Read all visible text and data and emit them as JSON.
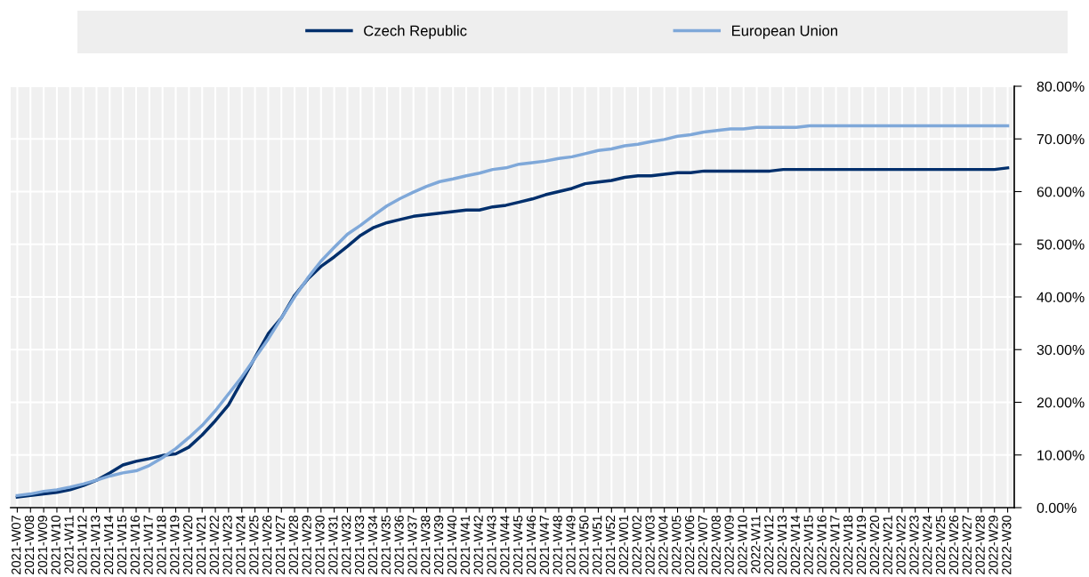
{
  "chart_data": {
    "type": "line",
    "categories": [
      "2021-W07",
      "2021-W08",
      "2021-W09",
      "2021-W10",
      "2021-W11",
      "2021-W12",
      "2021-W13",
      "2021-W14",
      "2021-W15",
      "2021-W16",
      "2021-W17",
      "2021-W18",
      "2021-W19",
      "2021-W20",
      "2021-W21",
      "2021-W22",
      "2021-W23",
      "2021-W24",
      "2021-W25",
      "2021-W26",
      "2021-W27",
      "2021-W28",
      "2021-W29",
      "2021-W30",
      "2021-W31",
      "2021-W32",
      "2021-W33",
      "2021-W34",
      "2021-W35",
      "2021-W36",
      "2021-W37",
      "2021-W38",
      "2021-W39",
      "2021-W40",
      "2021-W41",
      "2021-W42",
      "2021-W43",
      "2021-W44",
      "2021-W45",
      "2021-W46",
      "2021-W47",
      "2021-W48",
      "2021-W49",
      "2021-W50",
      "2021-W51",
      "2021-W52",
      "2022-W01",
      "2022-W02",
      "2022-W03",
      "2022-W04",
      "2022-W05",
      "2022-W06",
      "2022-W07",
      "2022-W08",
      "2022-W09",
      "2022-W10",
      "2022-W11",
      "2022-W12",
      "2022-W13",
      "2022-W14",
      "2022-W15",
      "2022-W16",
      "2022-W17",
      "2022-W18",
      "2022-W19",
      "2022-W20",
      "2022-W21",
      "2022-W22",
      "2022-W23",
      "2022-W24",
      "2022-W25",
      "2022-W26",
      "2022-W27",
      "2022-W28",
      "2022-W29",
      "2022-W30"
    ],
    "series": [
      {
        "name": "Czech Republic",
        "color": "#002f6c",
        "values": [
          2.0,
          2.3,
          2.6,
          2.9,
          3.4,
          4.2,
          5.2,
          6.6,
          8.1,
          8.8,
          9.3,
          9.9,
          10.2,
          11.5,
          13.8,
          16.5,
          19.5,
          24.0,
          28.5,
          33.0,
          36.0,
          40.3,
          43.4,
          45.8,
          47.6,
          49.6,
          51.7,
          53.2,
          54.1,
          54.7,
          55.3,
          55.6,
          55.9,
          56.2,
          56.5,
          56.5,
          57.1,
          57.4,
          58.0,
          58.6,
          59.4,
          60.0,
          60.6,
          61.5,
          61.8,
          62.1,
          62.7,
          63.0,
          63.0,
          63.3,
          63.6,
          63.6,
          63.9,
          63.9,
          63.9,
          63.9,
          63.9,
          63.9,
          64.2,
          64.2,
          64.2,
          64.2,
          64.2,
          64.2,
          64.2,
          64.2,
          64.2,
          64.2,
          64.2,
          64.2,
          64.2,
          64.2,
          64.2,
          64.2,
          64.2,
          64.5
        ]
      },
      {
        "name": "European Union",
        "color": "#7fa8d9",
        "values": [
          2.3,
          2.6,
          3.1,
          3.4,
          3.9,
          4.5,
          5.2,
          6.0,
          6.6,
          7.0,
          8.0,
          9.5,
          11.2,
          13.3,
          15.6,
          18.4,
          21.6,
          24.8,
          28.4,
          32.0,
          36.0,
          40.0,
          43.6,
          46.8,
          49.4,
          51.9,
          53.6,
          55.5,
          57.3,
          58.7,
          59.9,
          61.0,
          61.9,
          62.4,
          63.0,
          63.5,
          64.2,
          64.5,
          65.2,
          65.5,
          65.8,
          66.3,
          66.6,
          67.2,
          67.8,
          68.1,
          68.7,
          69.0,
          69.5,
          69.9,
          70.5,
          70.8,
          71.3,
          71.6,
          71.9,
          71.9,
          72.2,
          72.2,
          72.2,
          72.2,
          72.5,
          72.5,
          72.5,
          72.5,
          72.5,
          72.5,
          72.5,
          72.5,
          72.5,
          72.5,
          72.5,
          72.5,
          72.5,
          72.5,
          72.5,
          72.5
        ]
      }
    ],
    "ylim": [
      0,
      80
    ],
    "yticks": [
      {
        "value": 0,
        "label": "0.00%"
      },
      {
        "value": 10,
        "label": "10.00%"
      },
      {
        "value": 20,
        "label": "20.00%"
      },
      {
        "value": 30,
        "label": "30.00%"
      },
      {
        "value": 40,
        "label": "40.00%"
      },
      {
        "value": 50,
        "label": "50.00%"
      },
      {
        "value": 60,
        "label": "60.00%"
      },
      {
        "value": 70,
        "label": "70.00%"
      },
      {
        "value": 80,
        "label": "80.00%"
      }
    ],
    "grid": true,
    "legend": "top",
    "marker": "none",
    "line_style": "solid"
  }
}
